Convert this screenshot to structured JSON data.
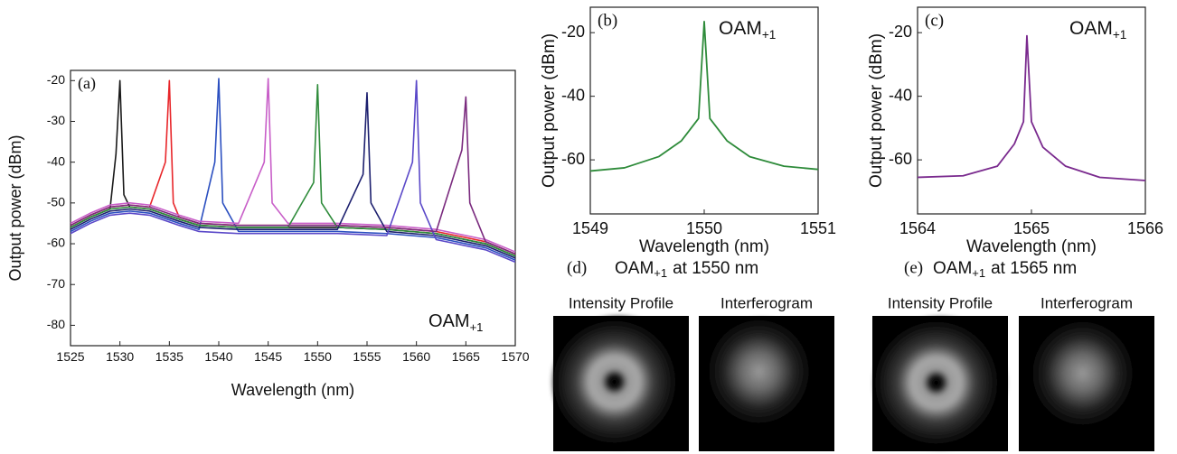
{
  "chart_data": [
    {
      "type": "line",
      "label": "(a)",
      "annotation": {
        "text": "OAM",
        "subscript": "+1"
      },
      "x_label": "Wavelength (nm)",
      "y_label": "Output power (dBm)",
      "xlim": [
        1525,
        1570
      ],
      "xticks": [
        1525,
        1530,
        1535,
        1540,
        1545,
        1550,
        1555,
        1560,
        1565,
        1570
      ],
      "ylim": [
        -85,
        -17.5
      ],
      "yticks": [
        -80,
        -70,
        -60,
        -50,
        -40,
        -30,
        -20
      ],
      "series": [
        {
          "color": "#1a1a1a",
          "x": [
            1525,
            1527,
            1529,
            1529.6,
            1530,
            1530.4,
            1531,
            1533,
            1536,
            1538,
            1542,
            1547,
            1552,
            1557,
            1562,
            1567,
            1570
          ],
          "values": [
            -56,
            -53.5,
            -51.5,
            -38,
            -20,
            -48,
            -51,
            -51.5,
            -54,
            -55.5,
            -56,
            -56,
            -56,
            -56.5,
            -57.5,
            -60,
            -63
          ]
        },
        {
          "color": "#e8262a",
          "x": [
            1525,
            1527,
            1529,
            1531,
            1533,
            1534.6,
            1535,
            1535.4,
            1536,
            1538,
            1542,
            1547,
            1552,
            1557,
            1562,
            1567,
            1570
          ],
          "values": [
            -55.5,
            -53,
            -51,
            -50.5,
            -51,
            -40,
            -20,
            -50,
            -53.5,
            -55,
            -55.5,
            -55.5,
            -55.5,
            -56,
            -57,
            -59.5,
            -62.5
          ]
        },
        {
          "color": "#2b4fc0",
          "x": [
            1525,
            1527,
            1529,
            1531,
            1533,
            1536,
            1538,
            1539.6,
            1540,
            1540.4,
            1542,
            1547,
            1552,
            1557,
            1562,
            1567,
            1570
          ],
          "values": [
            -57,
            -54.5,
            -52.5,
            -52,
            -52.5,
            -55,
            -56.5,
            -40,
            -19.5,
            -50,
            -57,
            -57,
            -57,
            -57.5,
            -58.5,
            -61,
            -64
          ]
        },
        {
          "color": "#c85ec8",
          "x": [
            1525,
            1527,
            1529,
            1531,
            1533,
            1536,
            1538,
            1542,
            1544.6,
            1545,
            1545.4,
            1547,
            1552,
            1557,
            1562,
            1567,
            1570
          ],
          "values": [
            -55,
            -52.5,
            -50.5,
            -50,
            -50.5,
            -53,
            -54.5,
            -55,
            -40,
            -19.5,
            -50,
            -55,
            -55,
            -55.5,
            -56.5,
            -59,
            -62
          ]
        },
        {
          "color": "#2e8b3a",
          "x": [
            1525,
            1527,
            1529,
            1531,
            1533,
            1536,
            1538,
            1542,
            1547,
            1549.6,
            1550,
            1550.4,
            1552,
            1557,
            1562,
            1567,
            1570
          ],
          "values": [
            -56,
            -53.5,
            -51.5,
            -51,
            -51.5,
            -54,
            -55.5,
            -56,
            -56,
            -45,
            -21,
            -50,
            -56,
            -56.5,
            -57.5,
            -60,
            -63
          ]
        },
        {
          "color": "#1c1f6e",
          "x": [
            1525,
            1527,
            1529,
            1531,
            1533,
            1536,
            1538,
            1542,
            1547,
            1552,
            1554.6,
            1555,
            1555.4,
            1557,
            1562,
            1567,
            1570
          ],
          "values": [
            -56.5,
            -54,
            -52,
            -51.5,
            -52,
            -54.5,
            -56,
            -56.5,
            -56.5,
            -56.5,
            -43,
            -23,
            -50,
            -57,
            -58,
            -60.5,
            -63.5
          ]
        },
        {
          "color": "#5a48c8",
          "x": [
            1525,
            1527,
            1529,
            1531,
            1533,
            1536,
            1538,
            1542,
            1547,
            1552,
            1557,
            1559.6,
            1560,
            1560.4,
            1562,
            1567,
            1570
          ],
          "values": [
            -57.5,
            -55,
            -53,
            -52.5,
            -53,
            -55.5,
            -57,
            -57.5,
            -57.5,
            -57.5,
            -58,
            -40,
            -20,
            -50,
            -59,
            -61.5,
            -64.5
          ]
        },
        {
          "color": "#7a2a7e",
          "x": [
            1525,
            1527,
            1529,
            1531,
            1533,
            1536,
            1538,
            1542,
            1547,
            1552,
            1557,
            1562,
            1564.6,
            1565,
            1565.4,
            1567,
            1570
          ],
          "values": [
            -55.5,
            -53,
            -51,
            -50.5,
            -51,
            -53.5,
            -55,
            -55.5,
            -55.5,
            -55.5,
            -56,
            -57,
            -37,
            -24,
            -50,
            -59.5,
            -62.5
          ]
        }
      ]
    },
    {
      "type": "line",
      "label": "(b)",
      "annotation": {
        "text": "OAM",
        "subscript": "+1"
      },
      "x_label": "Wavelength (nm)",
      "y_label": "Output power (dBm)",
      "xlim": [
        1549,
        1551
      ],
      "xticks": [
        1549,
        1550,
        1551
      ],
      "ylim": [
        -77,
        -12
      ],
      "yticks": [
        -60,
        -40,
        -20
      ],
      "series": [
        {
          "color": "#2e8b3a",
          "x": [
            1549,
            1549.3,
            1549.6,
            1549.8,
            1549.95,
            1550,
            1550.05,
            1550.2,
            1550.4,
            1550.7,
            1551
          ],
          "values": [
            -63.5,
            -62.5,
            -59,
            -54,
            -47,
            -16.5,
            -47,
            -54,
            -59,
            -62,
            -63
          ]
        }
      ]
    },
    {
      "type": "line",
      "label": "(c)",
      "annotation": {
        "text": "OAM",
        "subscript": "+1"
      },
      "x_label": "Wavelength (nm)",
      "y_label": "Output power (dBm)",
      "xlim": [
        1564,
        1566
      ],
      "xticks": [
        1564,
        1565,
        1566
      ],
      "ylim": [
        -77,
        -12
      ],
      "yticks": [
        -60,
        -40,
        -20
      ],
      "series": [
        {
          "color": "#7a2a8e",
          "x": [
            1564,
            1564.4,
            1564.7,
            1564.85,
            1564.93,
            1564.96,
            1565,
            1565.1,
            1565.3,
            1565.6,
            1566
          ],
          "values": [
            -65.5,
            -65,
            -62,
            -55,
            -48,
            -21,
            -48,
            -56,
            -62,
            -65.5,
            -66.5
          ]
        }
      ]
    }
  ],
  "panels": [
    {
      "label": "(d)",
      "title": {
        "text": "OAM",
        "subscript": "+1",
        "suffix": "at 1550 nm"
      },
      "images": [
        "Intensity Profile",
        "Interferogram"
      ]
    },
    {
      "label": "(e)",
      "title": {
        "text": "OAM",
        "subscript": "+1",
        "suffix": "at 1565 nm"
      },
      "images": [
        "Intensity Profile",
        "Interferogram"
      ]
    }
  ]
}
